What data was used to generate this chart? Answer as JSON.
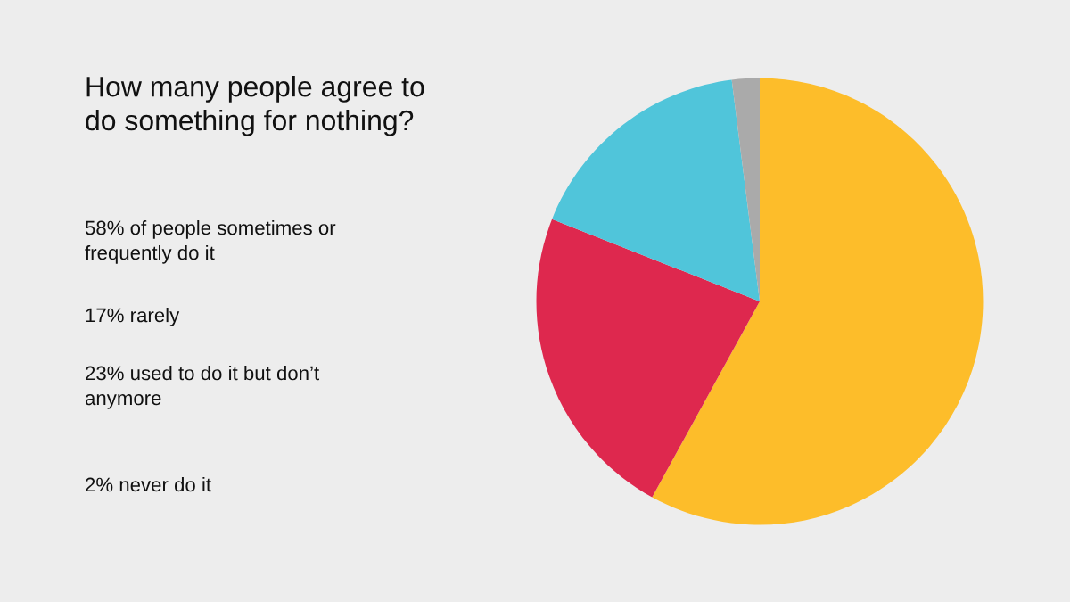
{
  "chart_data": {
    "type": "pie",
    "title": "How many people agree to\ndo something for nothing?",
    "categories": [
      null,
      null,
      null,
      null
    ],
    "values": [
      58,
      23,
      17,
      2
    ],
    "colors": [
      "#fdbd2a",
      "#de284e",
      "#50c5da",
      "#aaaaaa"
    ],
    "annotations": [
      "58% of people sometimes or\nfrequently do it",
      "17% rarely",
      "23% used to do it but don’t\nanymore",
      "2% never do it"
    ]
  }
}
